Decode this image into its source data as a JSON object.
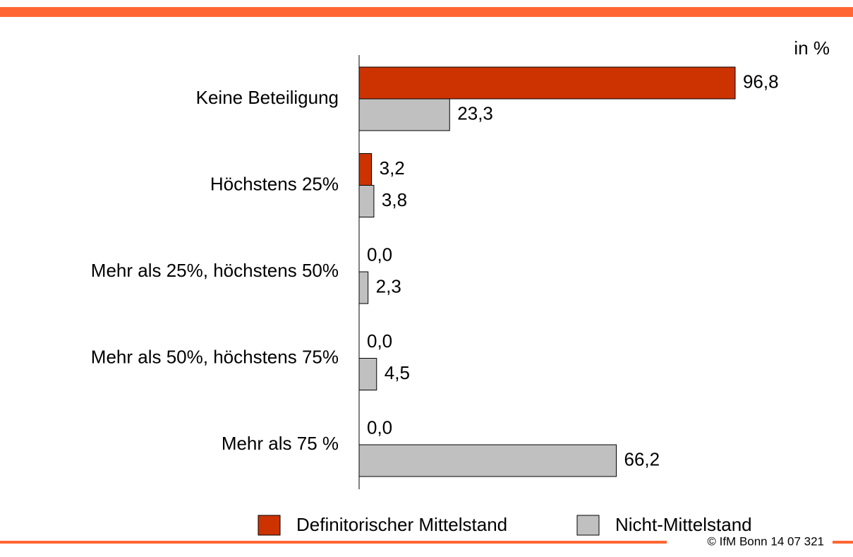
{
  "chart_data": {
    "type": "hbar",
    "unit_label": "in %",
    "categories": [
      "Keine Beteiligung",
      "Höchstens 25%",
      "Mehr als 25%, höchstens 50%",
      "Mehr als 50%, höchstens 75%",
      "Mehr als 75 %"
    ],
    "series": [
      {
        "name": "Definitorischer Mittelstand",
        "color": "#cc3300",
        "values": [
          96.8,
          3.2,
          0.0,
          0.0,
          0.0
        ],
        "value_labels": [
          "96,8",
          "3,2",
          "0,0",
          "0,0",
          "0,0"
        ]
      },
      {
        "name": "Nicht-Mittelstand",
        "color": "#c0c0c0",
        "values": [
          23.3,
          3.8,
          2.3,
          4.5,
          66.2
        ],
        "value_labels": [
          "23,3",
          "3,8",
          "2,3",
          "4,5",
          "66,2"
        ]
      }
    ],
    "source": "© IfM Bonn 14 07 321"
  }
}
